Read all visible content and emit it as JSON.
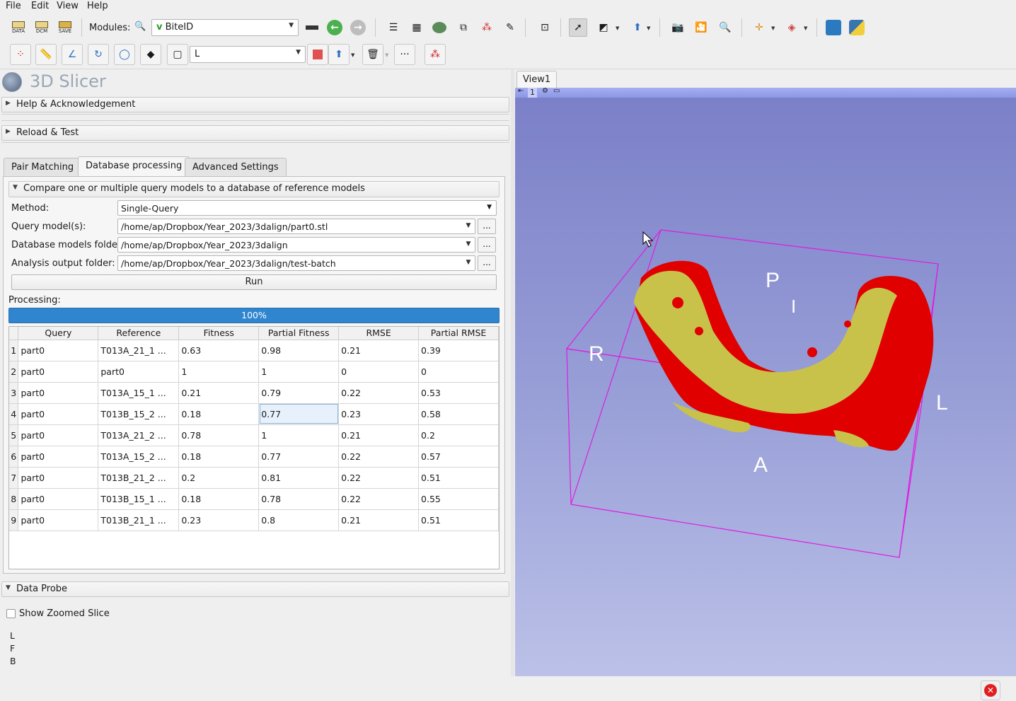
{
  "menu": [
    "File",
    "Edit",
    "View",
    "Help"
  ],
  "toolbar": {
    "data_label": "DATA",
    "dcm_label": "DCM",
    "save_label": "SAVE",
    "modules_label": "Modules:",
    "module_selected": "BiteID",
    "markup_node": "L"
  },
  "app": {
    "logo_text": "3D Slicer"
  },
  "sections": {
    "help": "Help & Acknowledgement",
    "reload": "Reload & Test",
    "data_probe": "Data Probe"
  },
  "tabs": [
    "Pair Matching",
    "Database processing",
    "Advanced Settings"
  ],
  "compare_section": "Compare one or multiple query models to a database of reference models",
  "form": {
    "method_label": "Method:",
    "method_value": "Single-Query",
    "query_label": "Query model(s):",
    "query_value": "/home/ap/Dropbox/Year_2023/3dalign/part0.stl",
    "db_label": "Database models folder:",
    "db_value": "/home/ap/Dropbox/Year_2023/3dalign",
    "out_label": "Analysis output folder:",
    "out_value": "/home/ap/Dropbox/Year_2023/3dalign/test-batch",
    "browse": "...",
    "run": "Run",
    "processing_label": "Processing:",
    "progress_text": "100%",
    "progress": 1.0
  },
  "table": {
    "columns": [
      "Query",
      "Reference",
      "Fitness",
      "Partial Fitness",
      "RMSE",
      "Partial RMSE"
    ],
    "rows": [
      [
        "1",
        "part0",
        "T013A_21_1 ...",
        "0.63",
        "0.98",
        "0.21",
        "0.39"
      ],
      [
        "2",
        "part0",
        "part0",
        "1",
        "1",
        "0",
        "0"
      ],
      [
        "3",
        "part0",
        "T013A_15_1 ...",
        "0.21",
        "0.79",
        "0.22",
        "0.53"
      ],
      [
        "4",
        "part0",
        "T013B_15_2 ...",
        "0.18",
        "0.77",
        "0.23",
        "0.58"
      ],
      [
        "5",
        "part0",
        "T013A_21_2 ...",
        "0.78",
        "1",
        "0.21",
        "0.2"
      ],
      [
        "6",
        "part0",
        "T013A_15_2 ...",
        "0.18",
        "0.77",
        "0.22",
        "0.57"
      ],
      [
        "7",
        "part0",
        "T013B_21_2 ...",
        "0.2",
        "0.81",
        "0.22",
        "0.51"
      ],
      [
        "8",
        "part0",
        "T013B_15_1 ...",
        "0.18",
        "0.78",
        "0.22",
        "0.55"
      ],
      [
        "9",
        "part0",
        "T013B_21_1 ...",
        "0.23",
        "0.8",
        "0.21",
        "0.51"
      ]
    ]
  },
  "probe": {
    "zoomed_label": "Show Zoomed Slice",
    "zoomed_checked": false,
    "lines": [
      "L",
      "F",
      "B"
    ]
  },
  "view": {
    "tab": "View1",
    "index": "1",
    "orientation": {
      "P": "P",
      "I": "I",
      "R": "R",
      "L": "L",
      "A": "A"
    }
  },
  "colors": {
    "progress": "#2f86cf",
    "model_red": "#e00000",
    "model_yellow": "#c9c24a",
    "bbox": "#e01ce0",
    "view_bg": "#8a90d0"
  }
}
